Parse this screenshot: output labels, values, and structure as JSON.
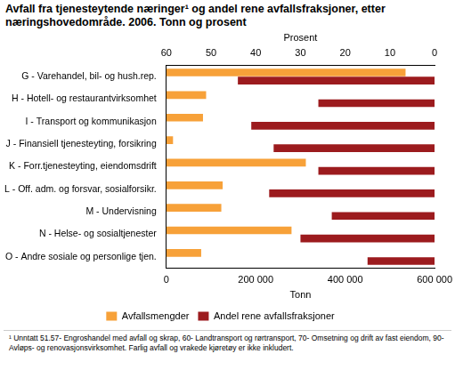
{
  "chart_data": {
    "type": "bar",
    "orientation": "horizontal",
    "title": "Avfall fra tjenesteytende næringer¹ og andel rene avfallsfraksjoner, etter næringshovedområde. 2006. Tonn og prosent",
    "footnote": "¹ Unntatt 51.57- Engroshandel med avfall og skrap, 60- Landtransport og rørtransport, 70- Omsetning og drift av fast eiendom, 90- Avløps- og renovasjonsvirksomhet. Farlig avfall og vrakede kjøretøy er ikke inkludert.",
    "categories": [
      "G - Varehandel, bil- og hush.rep.",
      "H - Hotell- og restaurantvirksomhet",
      "I - Transport og kommunikasjon",
      "J - Finansiell tjenesteyting, forsikring",
      "K - Forr.tjenesteyting, eiendomsdrift",
      "L - Off. adm. og forsvar, sosialforsikr.",
      "M - Undervisning",
      "N - Helse- og sosialtjenester",
      "O - Andre sosiale og personlige tjen."
    ],
    "series": [
      {
        "name": "Avfallsmengder",
        "color": "#f7a139",
        "axis": "x",
        "values": [
          535000,
          89000,
          82000,
          15000,
          312000,
          126000,
          123000,
          280000,
          78000
        ]
      },
      {
        "name": "Andel rene avfallsfraksjoner",
        "color": "#9c1b1e",
        "axis": "x2",
        "values": [
          44,
          26,
          41,
          36,
          26,
          37,
          23,
          30,
          15
        ]
      }
    ],
    "xlabel": "Tonn",
    "xlim": [
      0,
      600000
    ],
    "xticks": [
      0,
      {
        "value": 200000,
        "label": "200 000"
      },
      {
        "value": 400000,
        "label": "400 000"
      },
      {
        "value": 600000,
        "label": "600 000"
      }
    ],
    "x2label": "Prosent",
    "x2lim": [
      0,
      60
    ],
    "x2ticks": [
      0,
      10,
      20,
      30,
      40,
      50,
      60
    ],
    "grid": false,
    "legend": "bottom"
  }
}
